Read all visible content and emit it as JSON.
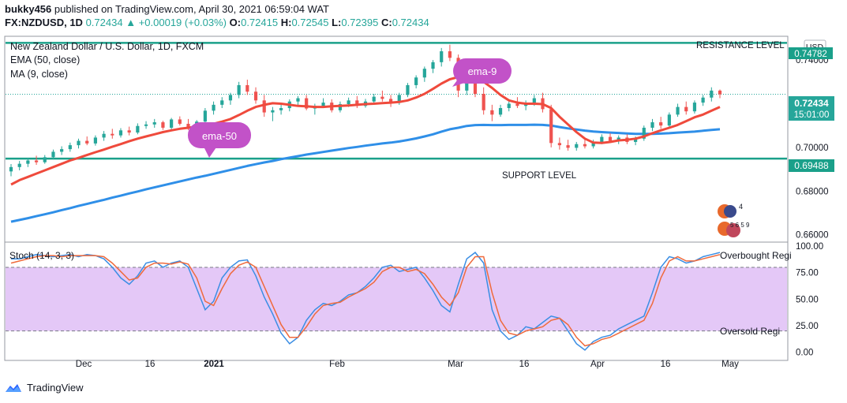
{
  "header": {
    "user": "bukky456",
    "published_text": "published on TradingView.com, April 30, 2021 06:59:04 WAT",
    "symbol": "FX:NZDUSD, 1D",
    "last": "0.72434",
    "change": "+0.00019 (+0.03%)",
    "o_label": "O:",
    "o_value": "0.72415",
    "h_label": "H:",
    "h_value": "0.72545",
    "l_label": "L:",
    "l_value": "0.72395",
    "c_label": "C:",
    "c_value": "0.72434"
  },
  "legend": {
    "title": "New Zealand Dollar / U.S. Dollar, 1D, FXCM",
    "ema": "EMA (50, close)",
    "ma": "MA (9, close)"
  },
  "labels": {
    "resistance": "RESISTANCE LEVEL",
    "support": "SUPPORT LEVEL",
    "ema9_bubble": "ema-9",
    "ema50_bubble": "ema-50",
    "currency": "USD",
    "stoch_title": "Stoch (14, 3, 3)",
    "overbought": "Overbought Regi",
    "oversold": "Oversold Regi",
    "price_tag": "0.72434",
    "countdown": "15:01:00",
    "support_tag": "0.69488",
    "resistance_tag": "0.74782",
    "brand": "TradingView",
    "flag_counts": "4",
    "flag_counts2": "5 6 5 9"
  },
  "colors": {
    "up": "#26a69a",
    "down": "#ef5350",
    "ema50": "#2f8fe8",
    "ma9": "#ef4a3c",
    "level": "#1aa08a",
    "bubble": "#c252c8",
    "band": "#e4c8f7",
    "stoch_k": "#3b8ee4",
    "stoch_d": "#ef6a3c"
  },
  "chart_data": {
    "type": "candlestick",
    "price_axis": {
      "ticks": [
        "0.74000",
        "0.72000",
        "0.70000",
        "0.68000",
        "0.66000"
      ],
      "range": [
        0.657,
        0.7505
      ]
    },
    "time_axis": {
      "ticks": [
        "Dec",
        "16",
        "2021",
        "Feb",
        "Mar",
        "16",
        "Apr",
        "16",
        "May"
      ]
    },
    "levels": {
      "resistance": 0.74782,
      "support": 0.69488,
      "last": 0.72434
    },
    "candles": [
      [
        0.689,
        0.6924,
        0.6868,
        0.691
      ],
      [
        0.691,
        0.6938,
        0.6895,
        0.6925
      ],
      [
        0.6925,
        0.6952,
        0.691,
        0.694
      ],
      [
        0.694,
        0.6962,
        0.692,
        0.6932
      ],
      [
        0.6932,
        0.6965,
        0.6925,
        0.6955
      ],
      [
        0.6955,
        0.699,
        0.6945,
        0.698
      ],
      [
        0.698,
        0.7005,
        0.6965,
        0.6992
      ],
      [
        0.6992,
        0.7022,
        0.698,
        0.701
      ],
      [
        0.701,
        0.704,
        0.6995,
        0.703
      ],
      [
        0.703,
        0.705,
        0.701,
        0.7018
      ],
      [
        0.7018,
        0.7055,
        0.7008,
        0.7045
      ],
      [
        0.7045,
        0.7075,
        0.703,
        0.7062
      ],
      [
        0.7062,
        0.7085,
        0.704,
        0.7055
      ],
      [
        0.7055,
        0.7088,
        0.7045,
        0.7078
      ],
      [
        0.7078,
        0.7095,
        0.7055,
        0.7068
      ],
      [
        0.7068,
        0.711,
        0.706,
        0.7098
      ],
      [
        0.7098,
        0.712,
        0.7085,
        0.7105
      ],
      [
        0.7105,
        0.713,
        0.709,
        0.7115
      ],
      [
        0.7115,
        0.7122,
        0.708,
        0.709
      ],
      [
        0.709,
        0.7135,
        0.7082,
        0.7128
      ],
      [
        0.7128,
        0.7142,
        0.71,
        0.7108
      ],
      [
        0.7108,
        0.713,
        0.708,
        0.709
      ],
      [
        0.709,
        0.7125,
        0.7078,
        0.7118
      ],
      [
        0.7118,
        0.718,
        0.711,
        0.7168
      ],
      [
        0.7168,
        0.721,
        0.715,
        0.7195
      ],
      [
        0.7195,
        0.723,
        0.718,
        0.7215
      ],
      [
        0.7215,
        0.725,
        0.7195,
        0.724
      ],
      [
        0.724,
        0.73,
        0.7225,
        0.7285
      ],
      [
        0.7285,
        0.731,
        0.724,
        0.7255
      ],
      [
        0.7255,
        0.7275,
        0.72,
        0.7215
      ],
      [
        0.7215,
        0.724,
        0.714,
        0.716
      ],
      [
        0.716,
        0.7185,
        0.712,
        0.717
      ],
      [
        0.717,
        0.7195,
        0.715,
        0.718
      ],
      [
        0.718,
        0.722,
        0.7165,
        0.721
      ],
      [
        0.721,
        0.7235,
        0.719,
        0.7225
      ],
      [
        0.7225,
        0.724,
        0.717,
        0.7178
      ],
      [
        0.7178,
        0.72,
        0.715,
        0.719
      ],
      [
        0.719,
        0.7225,
        0.718,
        0.7205
      ],
      [
        0.7205,
        0.722,
        0.716,
        0.717
      ],
      [
        0.717,
        0.721,
        0.716,
        0.7198
      ],
      [
        0.7198,
        0.7228,
        0.7185,
        0.7215
      ],
      [
        0.7215,
        0.7235,
        0.718,
        0.719
      ],
      [
        0.719,
        0.7222,
        0.7182,
        0.721
      ],
      [
        0.721,
        0.7245,
        0.72,
        0.7232
      ],
      [
        0.7232,
        0.726,
        0.721,
        0.7222
      ],
      [
        0.7222,
        0.724,
        0.7185,
        0.7205
      ],
      [
        0.7205,
        0.725,
        0.7195,
        0.724
      ],
      [
        0.724,
        0.7295,
        0.723,
        0.7285
      ],
      [
        0.7285,
        0.733,
        0.727,
        0.732
      ],
      [
        0.732,
        0.737,
        0.73,
        0.736
      ],
      [
        0.736,
        0.74,
        0.734,
        0.739
      ],
      [
        0.739,
        0.7455,
        0.737,
        0.744
      ],
      [
        0.744,
        0.747,
        0.7395,
        0.741
      ],
      [
        0.741,
        0.7425,
        0.723,
        0.726
      ],
      [
        0.726,
        0.731,
        0.724,
        0.7295
      ],
      [
        0.7295,
        0.7315,
        0.723,
        0.7245
      ],
      [
        0.7245,
        0.7275,
        0.715,
        0.717
      ],
      [
        0.717,
        0.7195,
        0.712,
        0.715
      ],
      [
        0.715,
        0.7195,
        0.714,
        0.718
      ],
      [
        0.718,
        0.721,
        0.7165,
        0.72
      ],
      [
        0.72,
        0.723,
        0.718,
        0.719
      ],
      [
        0.719,
        0.7215,
        0.717,
        0.7205
      ],
      [
        0.7205,
        0.724,
        0.719,
        0.7225
      ],
      [
        0.7225,
        0.725,
        0.716,
        0.7175
      ],
      [
        0.7175,
        0.7195,
        0.7,
        0.702
      ],
      [
        0.702,
        0.7045,
        0.699,
        0.701
      ],
      [
        0.701,
        0.7035,
        0.6985,
        0.6998
      ],
      [
        0.6998,
        0.7025,
        0.6985,
        0.7015
      ],
      [
        0.7015,
        0.704,
        0.6995,
        0.7005
      ],
      [
        0.7005,
        0.7035,
        0.6995,
        0.7025
      ],
      [
        0.7025,
        0.706,
        0.7015,
        0.7048
      ],
      [
        0.7048,
        0.7065,
        0.702,
        0.703
      ],
      [
        0.703,
        0.7055,
        0.7015,
        0.7045
      ],
      [
        0.7045,
        0.706,
        0.7015,
        0.7025
      ],
      [
        0.7025,
        0.705,
        0.701,
        0.704
      ],
      [
        0.704,
        0.71,
        0.703,
        0.709
      ],
      [
        0.709,
        0.713,
        0.7075,
        0.7115
      ],
      [
        0.7115,
        0.714,
        0.7085,
        0.71
      ],
      [
        0.71,
        0.716,
        0.709,
        0.715
      ],
      [
        0.715,
        0.72,
        0.714,
        0.7185
      ],
      [
        0.7185,
        0.721,
        0.715,
        0.7165
      ],
      [
        0.7165,
        0.7215,
        0.7155,
        0.7205
      ],
      [
        0.7205,
        0.724,
        0.719,
        0.7228
      ],
      [
        0.7228,
        0.7275,
        0.721,
        0.726
      ],
      [
        0.726,
        0.7265,
        0.7225,
        0.7243
      ]
    ],
    "ema50": [
      0.666,
      0.6668,
      0.6676,
      0.6685,
      0.6694,
      0.6703,
      0.6713,
      0.6722,
      0.6732,
      0.6741,
      0.6751,
      0.676,
      0.677,
      0.6779,
      0.6789,
      0.6798,
      0.6808,
      0.6817,
      0.6826,
      0.6835,
      0.6844,
      0.6853,
      0.6862,
      0.687,
      0.6879,
      0.6888,
      0.6897,
      0.6906,
      0.6915,
      0.6923,
      0.6931,
      0.6938,
      0.6946,
      0.6953,
      0.696,
      0.6967,
      0.6973,
      0.6979,
      0.6985,
      0.6991,
      0.6997,
      0.7002,
      0.7008,
      0.7013,
      0.7018,
      0.7022,
      0.7027,
      0.7034,
      0.7041,
      0.705,
      0.706,
      0.7072,
      0.7083,
      0.709,
      0.7098,
      0.7102,
      0.7103,
      0.7102,
      0.7102,
      0.7103,
      0.7103,
      0.7103,
      0.7104,
      0.7103,
      0.71,
      0.7093,
      0.7087,
      0.7082,
      0.7077,
      0.7073,
      0.707,
      0.7068,
      0.7066,
      0.7064,
      0.7062,
      0.7062,
      0.7062,
      0.7063,
      0.7065,
      0.7068,
      0.707,
      0.7072,
      0.7076,
      0.708,
      0.7083
    ],
    "ma9": [
      0.683,
      0.685,
      0.6865,
      0.688,
      0.6895,
      0.691,
      0.6925,
      0.694,
      0.6952,
      0.6965,
      0.6978,
      0.699,
      0.7003,
      0.7015,
      0.7028,
      0.704,
      0.705,
      0.706,
      0.707,
      0.7078,
      0.7085,
      0.709,
      0.7095,
      0.71,
      0.7108,
      0.7118,
      0.713,
      0.7148,
      0.7168,
      0.7185,
      0.7195,
      0.7202,
      0.72,
      0.7195,
      0.719,
      0.7188,
      0.7185,
      0.7185,
      0.7188,
      0.719,
      0.7192,
      0.7195,
      0.7198,
      0.72,
      0.7203,
      0.7205,
      0.7208,
      0.7215,
      0.7228,
      0.7245,
      0.7268,
      0.7292,
      0.7312,
      0.7322,
      0.733,
      0.7325,
      0.73,
      0.7272,
      0.724,
      0.7215,
      0.7205,
      0.72,
      0.72,
      0.7198,
      0.718,
      0.714,
      0.7105,
      0.707,
      0.704,
      0.7022,
      0.702,
      0.7025,
      0.7032,
      0.7035,
      0.704,
      0.705,
      0.7065,
      0.7078,
      0.709,
      0.7103,
      0.712,
      0.7138,
      0.715,
      0.7168,
      0.7185
    ],
    "stoch": {
      "title": "Stoch (14, 3, 3)",
      "ticks": [
        "100.00",
        "75.00",
        "50.00",
        "25.00",
        "0.00"
      ],
      "range": [
        -7,
        103
      ],
      "bands": [
        20,
        80
      ],
      "k": [
        88,
        88,
        90,
        92,
        91,
        90,
        91,
        92,
        90,
        92,
        91,
        88,
        80,
        70,
        64,
        72,
        84,
        86,
        80,
        84,
        86,
        80,
        60,
        40,
        48,
        70,
        80,
        86,
        87,
        72,
        52,
        36,
        18,
        8,
        14,
        30,
        40,
        46,
        44,
        48,
        54,
        56,
        62,
        70,
        80,
        82,
        76,
        78,
        80,
        70,
        58,
        44,
        38,
        64,
        88,
        94,
        84,
        40,
        20,
        12,
        16,
        24,
        22,
        28,
        34,
        32,
        20,
        8,
        2,
        10,
        14,
        16,
        22,
        26,
        30,
        34,
        56,
        80,
        90,
        88,
        84,
        86,
        90,
        92,
        94
      ],
      "d": [
        84,
        86,
        88,
        90,
        91,
        91,
        90,
        91,
        91,
        91,
        91,
        90,
        84,
        76,
        68,
        70,
        80,
        84,
        84,
        83,
        85,
        83,
        70,
        48,
        44,
        60,
        74,
        82,
        85,
        80,
        62,
        44,
        26,
        14,
        14,
        24,
        36,
        44,
        46,
        47,
        52,
        56,
        60,
        66,
        76,
        80,
        80,
        76,
        78,
        74,
        64,
        52,
        44,
        56,
        80,
        90,
        90,
        56,
        30,
        18,
        16,
        20,
        22,
        24,
        30,
        32,
        26,
        14,
        6,
        8,
        12,
        14,
        18,
        22,
        26,
        30,
        46,
        70,
        86,
        90,
        86,
        86,
        88,
        90,
        92
      ]
    }
  }
}
